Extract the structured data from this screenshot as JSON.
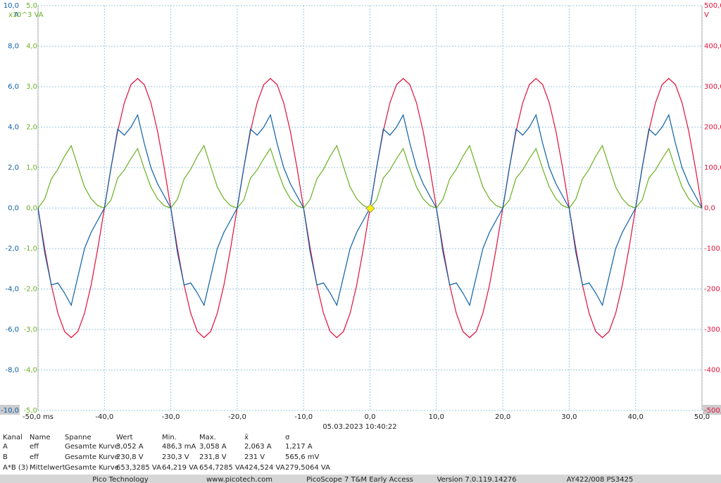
{
  "chart_data": {
    "type": "line",
    "y_unit": "A",
    "y3_unit": "x10^3 VA",
    "y2_unit": "V",
    "x": [
      -50,
      -49,
      -48,
      -47,
      -46,
      -45,
      -44,
      -43,
      -42,
      -41,
      -40,
      -39,
      -38,
      -37,
      -36,
      -35,
      -34,
      -33,
      -32,
      -31,
      -30,
      -29,
      -28,
      -27,
      -26,
      -25,
      -24,
      -23,
      -22,
      -21,
      -20,
      -19,
      -18,
      -17,
      -16,
      -15,
      -14,
      -13,
      -12,
      -11,
      -10,
      -9,
      -8,
      -7,
      -6,
      -5,
      -4,
      -3,
      -2,
      -1,
      0,
      1,
      2,
      3,
      4,
      5,
      6,
      7,
      8,
      9,
      10,
      11,
      12,
      13,
      14,
      15,
      16,
      17,
      18,
      19,
      20,
      21,
      22,
      23,
      24,
      25,
      26,
      27,
      28,
      29,
      30,
      31,
      32,
      33,
      34,
      35,
      36,
      37,
      38,
      39,
      40,
      41,
      42,
      43,
      44,
      45,
      46,
      47,
      48,
      49,
      50
    ],
    "xlim": [
      -50,
      50
    ],
    "xticks": [
      {
        "value": -50,
        "label": "-50,0 ms"
      },
      {
        "value": -40,
        "label": "-40,0"
      },
      {
        "value": -30,
        "label": "-30,0"
      },
      {
        "value": -20,
        "label": "-20,0"
      },
      {
        "value": -10,
        "label": "-10,0"
      },
      {
        "value": 0,
        "label": "0,0"
      },
      {
        "value": 10,
        "label": "10,0"
      },
      {
        "value": 20,
        "label": "20,0"
      },
      {
        "value": 30,
        "label": "30,0"
      },
      {
        "value": 40,
        "label": "40,0"
      },
      {
        "value": 50,
        "label": "50,0"
      }
    ],
    "ylim": [
      -10,
      10
    ],
    "yticks": [
      {
        "value": 10,
        "label": "10,0"
      },
      {
        "value": 8,
        "label": "8,0"
      },
      {
        "value": 6,
        "label": "6,0"
      },
      {
        "value": 4,
        "label": "4,0"
      },
      {
        "value": 2,
        "label": "2,0"
      },
      {
        "value": 0,
        "label": "0,0"
      },
      {
        "value": -2,
        "label": "-2,0"
      },
      {
        "value": -4,
        "label": "-4,0"
      },
      {
        "value": -6,
        "label": "-6,0"
      },
      {
        "value": -8,
        "label": "-8,0"
      },
      {
        "value": -10,
        "label": "-10,0"
      }
    ],
    "y3lim": [
      -5,
      5
    ],
    "y3ticks": [
      {
        "value": 5,
        "label": "5,0"
      },
      {
        "value": 4,
        "label": "4,0"
      },
      {
        "value": 3,
        "label": "3,0"
      },
      {
        "value": 2,
        "label": "2,0"
      },
      {
        "value": 1,
        "label": "1,0"
      },
      {
        "value": 0,
        "label": "0,0"
      },
      {
        "value": -1,
        "label": "-1,0"
      },
      {
        "value": -2,
        "label": "-2,0"
      },
      {
        "value": -3,
        "label": "-3,0"
      },
      {
        "value": -4,
        "label": "-4,0"
      },
      {
        "value": -5,
        "label": "-5,0"
      }
    ],
    "y2lim": [
      -500,
      500
    ],
    "y2ticks": [
      {
        "value": 500,
        "label": "500,0"
      },
      {
        "value": 400,
        "label": "400,0"
      },
      {
        "value": 300,
        "label": "300,0"
      },
      {
        "value": 200,
        "label": "200,0"
      },
      {
        "value": 100,
        "label": "100,0"
      },
      {
        "value": 0,
        "label": "0,0"
      },
      {
        "value": -100,
        "label": "-100,0"
      },
      {
        "value": -200,
        "label": "-200,0"
      },
      {
        "value": -300,
        "label": "-300,0"
      },
      {
        "value": -400,
        "label": "-400,0"
      },
      {
        "value": -500,
        "label": "-500,0"
      }
    ],
    "grid": true,
    "series": [
      {
        "color": "#e0103a",
        "axis": "y2",
        "values": [
          0,
          -100,
          -190,
          -260,
          -305,
          -320,
          -305,
          -260,
          -190,
          -100,
          0,
          100,
          190,
          260,
          305,
          320,
          305,
          260,
          190,
          100,
          0,
          -100,
          -190,
          -260,
          -305,
          -320,
          -305,
          -260,
          -190,
          -100,
          0,
          100,
          190,
          260,
          305,
          320,
          305,
          260,
          190,
          100,
          0,
          -100,
          -190,
          -260,
          -305,
          -320,
          -305,
          -260,
          -190,
          -100,
          0,
          100,
          190,
          260,
          305,
          320,
          305,
          260,
          190,
          100,
          0,
          -100,
          -190,
          -260,
          -305,
          -320,
          -305,
          -260,
          -190,
          -100,
          0,
          100,
          190,
          260,
          305,
          320,
          305,
          260,
          190,
          100,
          0,
          -100,
          -190,
          -260,
          -305,
          -320,
          -305,
          -260,
          -190,
          -100,
          0,
          100,
          190,
          260,
          305,
          320,
          305,
          260,
          190,
          100,
          0
        ]
      },
      {
        "color": "#6ab023",
        "axis": "y3",
        "values": [
          0,
          0.22,
          0.72,
          0.96,
          1.28,
          1.54,
          1.03,
          0.52,
          0.23,
          0.06,
          0,
          0.2,
          0.74,
          0.94,
          1.22,
          1.47,
          0.97,
          0.52,
          0.23,
          0.06,
          0,
          0.22,
          0.72,
          0.96,
          1.28,
          1.54,
          1.03,
          0.52,
          0.23,
          0.06,
          0,
          0.2,
          0.74,
          0.94,
          1.22,
          1.47,
          0.97,
          0.52,
          0.23,
          0.06,
          0,
          0.22,
          0.72,
          0.96,
          1.28,
          1.54,
          1.03,
          0.52,
          0.23,
          0.06,
          0,
          0.2,
          0.74,
          0.94,
          1.22,
          1.47,
          0.97,
          0.52,
          0.23,
          0.06,
          0,
          0.22,
          0.72,
          0.96,
          1.28,
          1.54,
          1.03,
          0.52,
          0.23,
          0.06,
          0,
          0.2,
          0.74,
          0.94,
          1.22,
          1.47,
          0.97,
          0.52,
          0.23,
          0.06,
          0,
          0.22,
          0.72,
          0.96,
          1.28,
          1.54,
          1.03,
          0.52,
          0.23,
          0.06,
          0,
          0.2,
          0.74,
          0.94,
          1.22,
          1.47,
          0.97,
          0.52,
          0.23,
          0.06,
          0
        ]
      },
      {
        "color": "#0b5fa5",
        "axis": "y",
        "values": [
          0,
          -2.2,
          -3.8,
          -3.7,
          -4.2,
          -4.8,
          -3.4,
          -2,
          -1.2,
          -0.6,
          0,
          2,
          3.9,
          3.6,
          4,
          4.6,
          3.2,
          2,
          1.2,
          0.6,
          0,
          -2.2,
          -3.8,
          -3.7,
          -4.2,
          -4.8,
          -3.4,
          -2,
          -1.2,
          -0.6,
          0,
          2,
          3.9,
          3.6,
          4,
          4.6,
          3.2,
          2,
          1.2,
          0.6,
          0,
          -2.2,
          -3.8,
          -3.7,
          -4.2,
          -4.8,
          -3.4,
          -2,
          -1.2,
          -0.6,
          0,
          2,
          3.9,
          3.6,
          4,
          4.6,
          3.2,
          2,
          1.2,
          0.6,
          0,
          -2.2,
          -3.8,
          -3.7,
          -4.2,
          -4.8,
          -3.4,
          -2,
          -1.2,
          -0.6,
          0,
          2,
          3.9,
          3.6,
          4,
          4.6,
          3.2,
          2,
          1.2,
          0.6,
          0,
          -2.2,
          -3.8,
          -3.7,
          -4.2,
          -4.8,
          -3.4,
          -2,
          -1.2,
          -0.6,
          0,
          2,
          3.9,
          3.6,
          4,
          4.6,
          3.2,
          2,
          1.2,
          0.6,
          0
        ]
      }
    ]
  },
  "timestamp": "05.03.2023 10:40:22",
  "table": {
    "header": [
      "Kanal",
      "Name",
      "Spanne",
      "Wert",
      "Min.",
      "Max.",
      "x̄",
      "σ"
    ],
    "rows": [
      [
        "A",
        "eff",
        "Gesamte Kurve",
        "3,052 A",
        "486,3 mA",
        "3,058 A",
        "2,063 A",
        "1,217 A"
      ],
      [
        "B",
        "eff",
        "Gesamte Kurve",
        "230,8 V",
        "230,3 V",
        "231,8 V",
        "231 V",
        "565,6 mV"
      ],
      [
        "A*B (3)",
        "Mittelwert",
        "Gesamte Kurve",
        "653,3285 VA",
        "64,219 VA",
        "654,7285 VA",
        "424,524 VA",
        "279,5064 VA"
      ]
    ]
  },
  "footer": [
    "Pico Technology",
    "www.picotech.com",
    "PicoScope 7 T&M Early Access",
    "Version 7.0.119.14276",
    "AY422/008 PS3425"
  ]
}
